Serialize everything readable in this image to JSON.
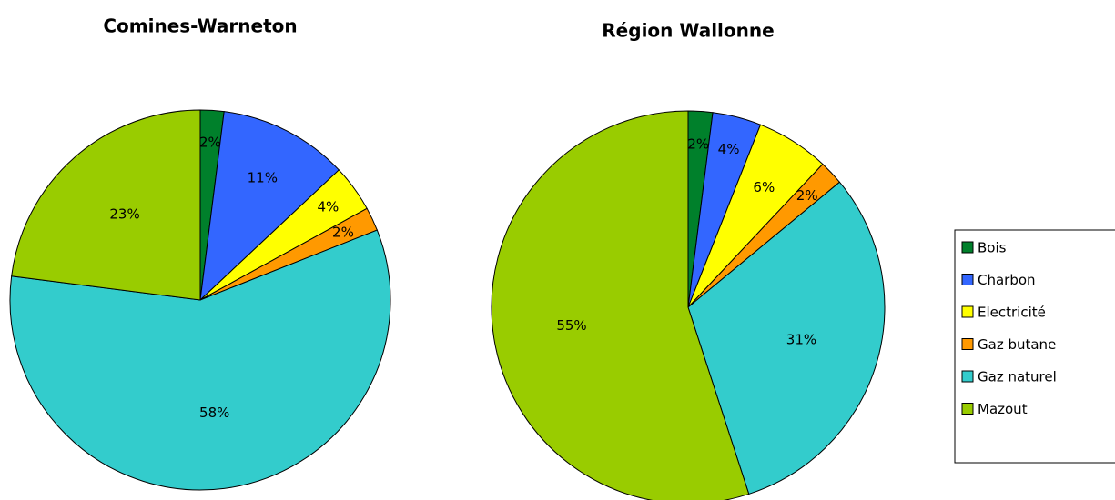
{
  "chart_data": [
    {
      "type": "pie",
      "title": "Comines-Warneton",
      "values": [
        2,
        11,
        4,
        2,
        58,
        23
      ],
      "value_labels": [
        "2%",
        "11%",
        "4%",
        "2%",
        "58%",
        "23%"
      ]
    },
    {
      "type": "pie",
      "title": "Région Wallonne",
      "values": [
        2,
        4,
        6,
        2,
        31,
        55
      ],
      "value_labels": [
        "2%",
        "4%",
        "6%",
        "2%",
        "31%",
        "55%"
      ]
    }
  ],
  "legend": {
    "labels": [
      "Bois",
      "Charbon",
      "Electricité",
      "Gaz butane",
      "Gaz naturel",
      "Mazout"
    ],
    "colors": [
      "#00802b",
      "#3366ff",
      "#ffff00",
      "#ff9900",
      "#33cccc",
      "#99cc00"
    ]
  }
}
